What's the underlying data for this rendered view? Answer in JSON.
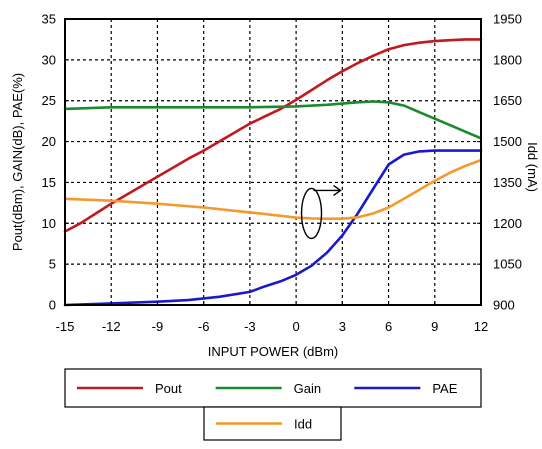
{
  "chart_data": {
    "type": "line",
    "xlabel": "INPUT POWER (dBm)",
    "ylabel": "Pout(dBm), GAIN(dB), PAE(%)",
    "y2label": "Idd (mA)",
    "xlim": [
      -15,
      12
    ],
    "ylim": [
      0,
      35
    ],
    "y2lim": [
      900,
      1950
    ],
    "x_ticks": [
      -15,
      -12,
      -9,
      -6,
      -3,
      0,
      3,
      6,
      9,
      12
    ],
    "x_tick_labels": [
      "-15",
      "-12",
      "-9",
      "-6",
      "-3",
      "0",
      "3",
      "6",
      "9",
      "12"
    ],
    "y_ticks": [
      0,
      5,
      10,
      15,
      20,
      25,
      30,
      35
    ],
    "y_tick_labels": [
      "0",
      "5",
      "10",
      "15",
      "20",
      "25",
      "30",
      "35"
    ],
    "y2_ticks": [
      900,
      1050,
      1200,
      1350,
      1500,
      1650,
      1800,
      1950
    ],
    "y2_tick_labels": [
      "900",
      "1050",
      "1200",
      "1350",
      "1500",
      "1650",
      "1800",
      "1950"
    ],
    "grid": true,
    "legend_position": "bottom",
    "series": [
      {
        "name": "Pout",
        "color": "#c0191e",
        "axis": "left",
        "x": [
          -15,
          -14,
          -13,
          -12,
          -11,
          -10,
          -9,
          -8,
          -7,
          -6,
          -5,
          -4,
          -3,
          -2,
          -1,
          0,
          1,
          2,
          3,
          4,
          5,
          6,
          7,
          8,
          9,
          10,
          11,
          12
        ],
        "y": [
          9,
          10,
          11.2,
          12.4,
          13.5,
          14.6,
          15.7,
          16.8,
          17.9,
          18.9,
          20,
          21.1,
          22.2,
          23.1,
          24,
          25.1,
          26.3,
          27.5,
          28.6,
          29.6,
          30.5,
          31.3,
          31.8,
          32.1,
          32.3,
          32.4,
          32.5,
          32.5
        ]
      },
      {
        "name": "Gain",
        "color": "#1b8a2e",
        "axis": "left",
        "x": [
          -15,
          -12,
          -9,
          -6,
          -3,
          0,
          2,
          4,
          5,
          6,
          7,
          8,
          9,
          10,
          11,
          12
        ],
        "y": [
          24,
          24.2,
          24.2,
          24.2,
          24.2,
          24.3,
          24.5,
          24.8,
          24.9,
          24.8,
          24.4,
          23.6,
          22.8,
          22,
          21.2,
          20.4
        ]
      },
      {
        "name": "PAE",
        "color": "#1a1acc",
        "axis": "left",
        "x": [
          -15,
          -12,
          -9,
          -7,
          -5,
          -3,
          -2,
          -1,
          0,
          1,
          2,
          3,
          4,
          5,
          6,
          7,
          8,
          9,
          10,
          11,
          12
        ],
        "y": [
          0,
          0.2,
          0.4,
          0.6,
          1,
          1.6,
          2.3,
          2.9,
          3.7,
          4.8,
          6.4,
          8.5,
          11.2,
          14.2,
          17.2,
          18.4,
          18.8,
          18.9,
          18.9,
          18.9,
          18.9
        ]
      },
      {
        "name": "Idd",
        "color": "#f39a2c",
        "axis": "right",
        "x": [
          -15,
          -12,
          -9,
          -6,
          -3,
          0,
          1,
          2,
          3,
          4,
          5,
          6,
          7,
          8,
          9,
          10,
          11,
          12
        ],
        "y": [
          1290,
          1283,
          1272,
          1258,
          1240,
          1221,
          1218,
          1217,
          1217,
          1222,
          1236,
          1258,
          1290,
          1323,
          1356,
          1386,
          1411,
          1432
        ]
      }
    ],
    "annotation": {
      "type": "ellipse-with-arrow",
      "points_to": "right-axis",
      "center_x": 1.0,
      "center_y": 11.2
    }
  }
}
